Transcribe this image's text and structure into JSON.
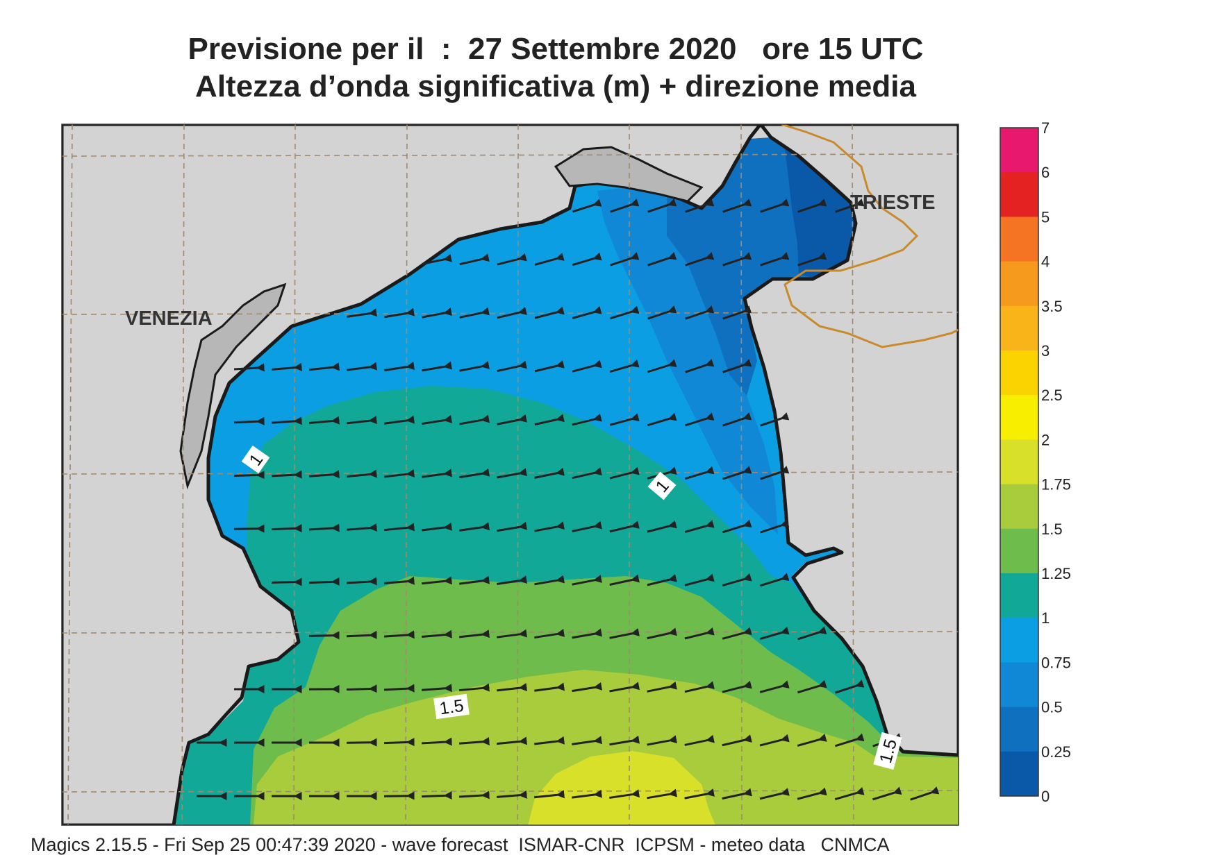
{
  "title": {
    "line1": "Previsione per il  :  27 Settembre 2020   ore 15 UTC",
    "line2": "Altezza d’onda significativa (m) + direzione media"
  },
  "cities": {
    "venezia": "VENEZIA",
    "trieste": "TRIESTE"
  },
  "contour_labels": [
    "1",
    "1",
    "1.5",
    "1.5"
  ],
  "colorbar": {
    "ticks": [
      "7",
      "6",
      "5",
      "4",
      "3.5",
      "3",
      "2.5",
      "2",
      "1.75",
      "1.5",
      "1.25",
      "1",
      "0.75",
      "0.5",
      "0.25",
      "0"
    ],
    "colors": [
      "#e8186e",
      "#e42222",
      "#f47424",
      "#f59a1c",
      "#f8b418",
      "#fbd300",
      "#f8ee00",
      "#d8e02a",
      "#a8cc3c",
      "#6ebc4c",
      "#12a898",
      "#0c9ee2",
      "#1088d6",
      "#1070c0",
      "#0a58a8"
    ]
  },
  "colors": {
    "land": "#d3d3d3",
    "grid": "#a08a6e",
    "border": "#c88a2a",
    "arrow": "#222222"
  },
  "footer": "Magics 2.15.5 - Fri Sep 25 00:47:39 2020 - wave forecast  ISMAR-CNR  ICPSM - meteo data   CNMCA"
}
